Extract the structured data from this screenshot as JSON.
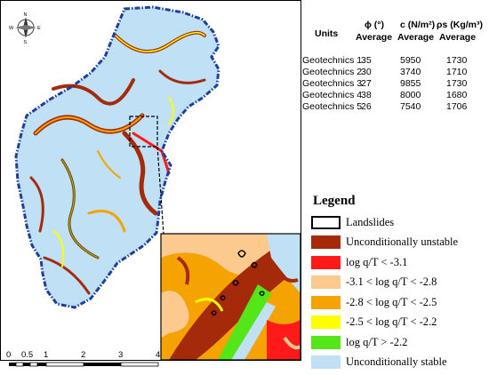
{
  "north_arrow": {
    "n": "N",
    "s": "S",
    "e": "E",
    "w": "W"
  },
  "table": {
    "headers": {
      "units": "Units",
      "phi": "ϕ (°)",
      "c": "c (N/m²)",
      "rho": "ρs (Kg/m³)",
      "avg": "Average"
    },
    "rows": [
      {
        "name": "Geotechnics 1",
        "phi": "35",
        "c": "5950",
        "rho": "1730"
      },
      {
        "name": "Geotechnics 2",
        "phi": "30",
        "c": "3740",
        "rho": "1710"
      },
      {
        "name": "Geotechnics 3",
        "phi": "27",
        "c": "9855",
        "rho": "1730"
      },
      {
        "name": "Geotechnics 4",
        "phi": "38",
        "c": "8000",
        "rho": "1680"
      },
      {
        "name": "Geotechnics 5",
        "phi": "26",
        "c": "7540",
        "rho": "1706"
      }
    ]
  },
  "legend": {
    "title": "Legend",
    "items": [
      {
        "label": "Landslides",
        "color": "#ffffff",
        "outline": true
      },
      {
        "label": "Unconditionally unstable",
        "color": "#a52a0a"
      },
      {
        "label": "log q/T < -3.1",
        "color": "#ff1a1a"
      },
      {
        "label": "-3.1 < log q/T < -2.8",
        "color": "#fcc98e"
      },
      {
        "label": "-2.8 < log q/T < -2.5",
        "color": "#f5a300"
      },
      {
        "label": "-2.5 < log q/T < -2.2",
        "color": "#ffff00"
      },
      {
        "label": "log q/T > -2.2",
        "color": "#55e61a"
      },
      {
        "label": "Unconditionally stable",
        "color": "#bfe0f5"
      }
    ]
  },
  "scale_bar": {
    "labels": [
      "0",
      "0.5",
      "1",
      "2",
      "3",
      "4"
    ],
    "unit": ""
  },
  "colors": {
    "stable": "#bfe0f5",
    "unstable": "#a52a0a",
    "boundary": "#1f3f9a"
  }
}
